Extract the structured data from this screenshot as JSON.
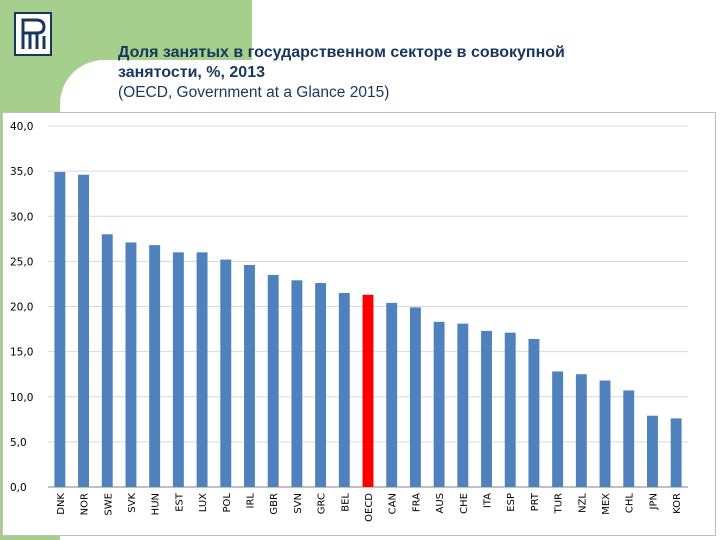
{
  "slide": {
    "title_line1": "Доля занятых в государственном секторе в совокупной",
    "title_line2": "занятости, %, 2013",
    "source": "(OECD, Government at a Glance 2015)"
  },
  "colors": {
    "bar": "#4f81bd",
    "highlight": "#ff0000",
    "accent": "#a6cf8d",
    "title": "#17375e"
  },
  "icons": {
    "logo": "hse-logo"
  },
  "chart_data": {
    "type": "bar",
    "categories": [
      "DNK",
      "NOR",
      "SWE",
      "SVK",
      "HUN",
      "EST",
      "LUX",
      "POL",
      "IRL",
      "GBR",
      "SVN",
      "GRC",
      "BEL",
      "OECD",
      "CAN",
      "FRA",
      "AUS",
      "CHE",
      "ITA",
      "ESP",
      "PRT",
      "TUR",
      "NZL",
      "MEX",
      "CHL",
      "JPN",
      "KOR"
    ],
    "values": [
      34.9,
      34.6,
      28.0,
      27.1,
      26.8,
      26.0,
      26.0,
      25.2,
      24.6,
      23.5,
      22.9,
      22.6,
      21.5,
      21.3,
      20.4,
      19.9,
      18.3,
      18.1,
      17.3,
      17.1,
      16.4,
      12.8,
      12.5,
      11.8,
      10.7,
      7.9,
      7.6
    ],
    "highlight": [
      "OECD"
    ],
    "ylim": [
      0,
      40
    ],
    "yticks": [
      "0,0",
      "5,0",
      "10,0",
      "15,0",
      "20,0",
      "25,0",
      "30,0",
      "35,0",
      "40,0"
    ],
    "grid": true,
    "legend": "none"
  }
}
